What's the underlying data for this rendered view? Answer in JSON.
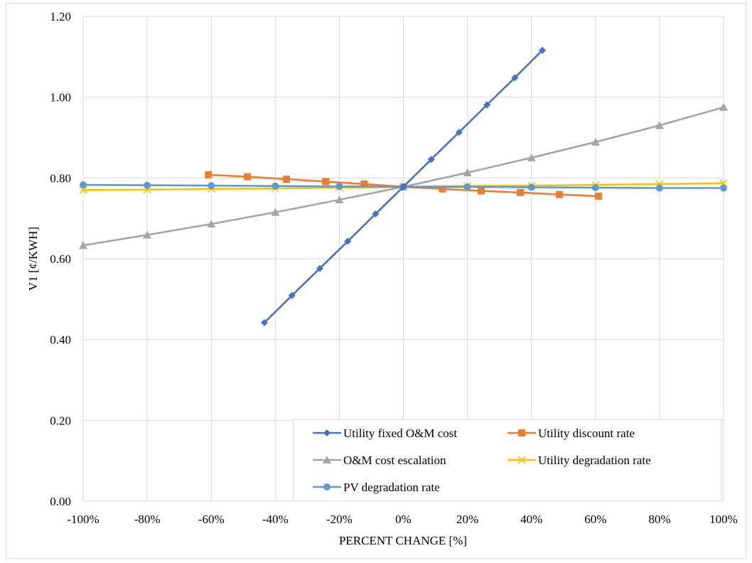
{
  "chart_data": {
    "type": "line",
    "title": "",
    "xlabel": "PERCENT CHANGE [%]",
    "ylabel": "V1 [¢/KWH]",
    "xlim": [
      -100,
      100
    ],
    "ylim": [
      0,
      1.2
    ],
    "x_ticks": [
      "-100%",
      "-80%",
      "-60%",
      "-40%",
      "-20%",
      "0%",
      "20%",
      "40%",
      "60%",
      "80%",
      "100%"
    ],
    "y_ticks": [
      "0.00",
      "0.20",
      "0.40",
      "0.60",
      "0.80",
      "1.00",
      "1.20"
    ],
    "grid": true,
    "legend_position": "bottom-right",
    "series": [
      {
        "name": "Utility fixed O&M cost",
        "color": "#4472c4",
        "marker": "diamond",
        "points": [
          [
            -43.4,
            0.442
          ],
          [
            -34.8,
            0.509
          ],
          [
            -26.1,
            0.576
          ],
          [
            -17.4,
            0.643
          ],
          [
            -8.7,
            0.711
          ],
          [
            0,
            0.778
          ],
          [
            8.7,
            0.846
          ],
          [
            17.4,
            0.913
          ],
          [
            26.1,
            0.981
          ],
          [
            34.8,
            1.048
          ],
          [
            43.4,
            1.116
          ]
        ]
      },
      {
        "name": "Utility discount rate",
        "color": "#ed7d31",
        "marker": "square",
        "points": [
          [
            -60.9,
            0.808
          ],
          [
            -48.7,
            0.803
          ],
          [
            -36.5,
            0.797
          ],
          [
            -24.3,
            0.791
          ],
          [
            -12.2,
            0.785
          ],
          [
            0,
            0.778
          ],
          [
            12.2,
            0.773
          ],
          [
            24.3,
            0.768
          ],
          [
            36.5,
            0.764
          ],
          [
            48.7,
            0.759
          ],
          [
            60.9,
            0.755
          ]
        ]
      },
      {
        "name": "O&M cost escalation",
        "color": "#a5a5a5",
        "marker": "triangle",
        "points": [
          [
            -100,
            0.633
          ],
          [
            -80,
            0.659
          ],
          [
            -60,
            0.686
          ],
          [
            -40,
            0.715
          ],
          [
            -20,
            0.746
          ],
          [
            0,
            0.778
          ],
          [
            20,
            0.813
          ],
          [
            40,
            0.85
          ],
          [
            60,
            0.889
          ],
          [
            80,
            0.93
          ],
          [
            100,
            0.975
          ]
        ]
      },
      {
        "name": "Utility degradation rate",
        "color": "#ffc000",
        "marker": "x",
        "points": [
          [
            -100,
            0.77
          ],
          [
            -80,
            0.771
          ],
          [
            -60,
            0.773
          ],
          [
            -40,
            0.774
          ],
          [
            -20,
            0.776
          ],
          [
            0,
            0.778
          ],
          [
            20,
            0.78
          ],
          [
            40,
            0.781
          ],
          [
            60,
            0.783
          ],
          [
            80,
            0.785
          ],
          [
            100,
            0.787
          ]
        ]
      },
      {
        "name": "PV degradation rate",
        "color": "#5b9bd5",
        "marker": "circle",
        "points": [
          [
            -100,
            0.783
          ],
          [
            -80,
            0.782
          ],
          [
            -60,
            0.781
          ],
          [
            -40,
            0.78
          ],
          [
            -20,
            0.779
          ],
          [
            0,
            0.778
          ],
          [
            20,
            0.778
          ],
          [
            40,
            0.777
          ],
          [
            60,
            0.776
          ],
          [
            80,
            0.775
          ],
          [
            100,
            0.775
          ]
        ]
      }
    ]
  }
}
